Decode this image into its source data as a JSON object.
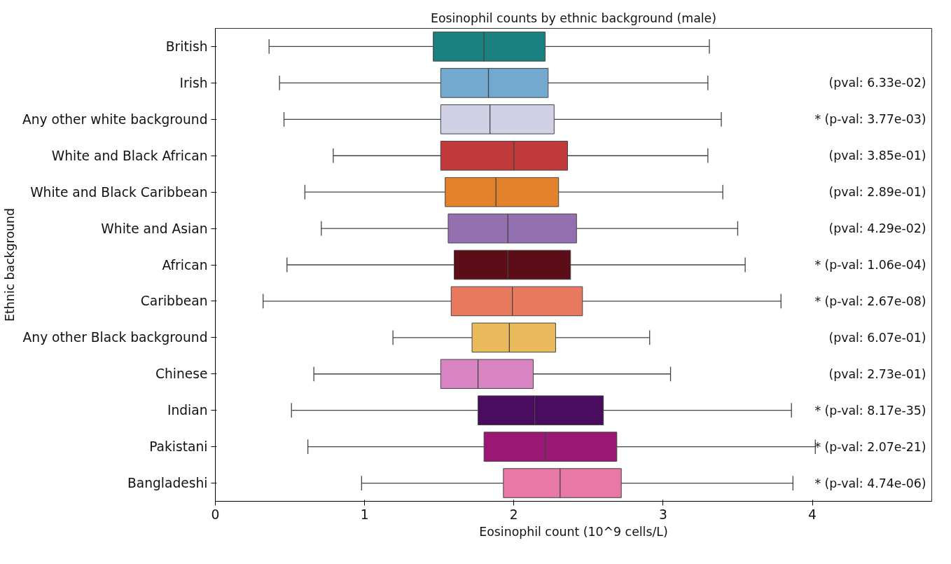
{
  "chart_data": {
    "type": "box",
    "title": "Eosinophil counts by ethnic background (male)",
    "xlabel": "Eosinophil count (10^9 cells/L)",
    "ylabel": "Ethnic background",
    "orientation": "horizontal",
    "categories": [
      "British",
      "Irish",
      "Any other white background",
      "White and Black African",
      "White and Black Caribbean",
      "White and Asian",
      "African",
      "Caribbean",
      "Any other Black background",
      "Chinese",
      "Indian",
      "Pakistani",
      "Bangladeshi"
    ],
    "colors": [
      "#1a8080",
      "#74a9cf",
      "#d0d1e6",
      "#c0393b",
      "#e3822b",
      "#9470b0",
      "#5c0d17",
      "#e8785e",
      "#e9bb5d",
      "#d884c2",
      "#4a0c5e",
      "#9a1774",
      "#e879a6"
    ],
    "boxes": [
      {
        "low": 0.36,
        "q1": 1.46,
        "median": 1.8,
        "q3": 2.21,
        "high": 3.31
      },
      {
        "low": 0.43,
        "q1": 1.51,
        "median": 1.83,
        "q3": 2.23,
        "high": 3.3
      },
      {
        "low": 0.46,
        "q1": 1.51,
        "median": 1.84,
        "q3": 2.27,
        "high": 3.39
      },
      {
        "low": 0.79,
        "q1": 1.51,
        "median": 2.0,
        "q3": 2.36,
        "high": 3.3
      },
      {
        "low": 0.6,
        "q1": 1.54,
        "median": 1.88,
        "q3": 2.3,
        "high": 3.4
      },
      {
        "low": 0.71,
        "q1": 1.56,
        "median": 1.96,
        "q3": 2.42,
        "high": 3.5
      },
      {
        "low": 0.48,
        "q1": 1.6,
        "median": 1.96,
        "q3": 2.38,
        "high": 3.55
      },
      {
        "low": 0.32,
        "q1": 1.58,
        "median": 1.99,
        "q3": 2.46,
        "high": 3.79
      },
      {
        "low": 1.19,
        "q1": 1.72,
        "median": 1.97,
        "q3": 2.28,
        "high": 2.91
      },
      {
        "low": 0.66,
        "q1": 1.51,
        "median": 1.76,
        "q3": 2.13,
        "high": 3.05
      },
      {
        "low": 0.51,
        "q1": 1.76,
        "median": 2.14,
        "q3": 2.6,
        "high": 3.86
      },
      {
        "low": 0.62,
        "q1": 1.8,
        "median": 2.21,
        "q3": 2.69,
        "high": 4.02
      },
      {
        "low": 0.98,
        "q1": 1.93,
        "median": 2.31,
        "q3": 2.72,
        "high": 3.87
      }
    ],
    "xlim": [
      0,
      4.8
    ],
    "xticks": [
      0,
      1,
      2,
      3,
      4
    ],
    "annotations": [
      "(pval: 6.33e-02)",
      "* (p-val: 3.77e-03)",
      "(pval: 3.85e-01)",
      "(pval: 2.89e-01)",
      "(pval: 4.29e-02)",
      "* (p-val: 1.06e-04)",
      "* (p-val: 2.67e-08)",
      "(pval: 6.07e-01)",
      "(pval: 2.73e-01)",
      "* (p-val: 8.17e-35)",
      "* (p-val: 2.07e-21)",
      "* (p-val: 4.74e-06)"
    ]
  }
}
